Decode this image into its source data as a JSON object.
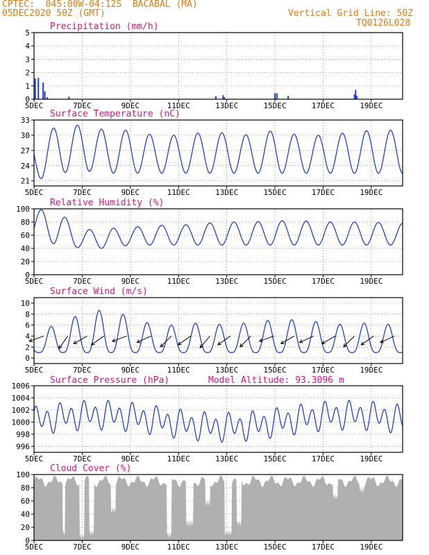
{
  "header": {
    "line1": "CPTEC:  045:00W-04:12S  BACABAL (MA)",
    "line2": "05DEC2020 50Z (GMT)",
    "right1": "Vertical Grid Line: 50Z",
    "right2": "TQ0126L028"
  },
  "x_axis": {
    "ticks": [
      "5DEC",
      "7DEC",
      "9DEC",
      "11DEC",
      "13DEC",
      "15DEC",
      "17DEC",
      "19DEC"
    ],
    "tick_days": [
      0,
      2,
      4,
      6,
      8,
      10,
      12,
      14
    ],
    "range_days": [
      0,
      15.3
    ],
    "hidden_label": "2020"
  },
  "colors": {
    "line": "#1f3fd6",
    "title": "#e0127a",
    "header": "#e07b13",
    "cloud": "#b0b0b0",
    "grid": "#777777"
  },
  "chart_data": [
    {
      "id": "precipitation",
      "type": "bar",
      "title": "Precipitation (mm/h)",
      "ylim": [
        0,
        5
      ],
      "yticks": [
        0,
        1,
        2,
        3,
        4,
        5
      ],
      "grid": "dotted",
      "x_unit": "days since 5DEC 00Z",
      "points": [
        [
          0.05,
          1.55
        ],
        [
          0.18,
          1.6
        ],
        [
          0.38,
          1.25
        ],
        [
          0.45,
          0.6
        ],
        [
          0.55,
          0.15
        ],
        [
          1.45,
          0.2
        ],
        [
          7.55,
          0.22
        ],
        [
          7.85,
          0.3
        ],
        [
          7.9,
          0.15
        ],
        [
          10.0,
          0.45
        ],
        [
          10.08,
          0.45
        ],
        [
          10.55,
          0.25
        ],
        [
          13.3,
          0.35
        ],
        [
          13.35,
          0.7
        ],
        [
          13.4,
          0.25
        ]
      ]
    },
    {
      "id": "temperature",
      "type": "line",
      "title": "Surface Temperature (nC)",
      "ylim": [
        20,
        33
      ],
      "yticks": [
        21,
        24,
        27,
        30,
        33
      ],
      "grid": "dotted",
      "x_unit": "days since 5DEC 00Z",
      "daily": {
        "min": [
          21,
          22.5,
          23,
          22.5,
          22.5,
          22.5,
          22.5,
          22.5,
          22.5,
          22.5,
          22.5,
          22.5,
          22.5,
          22.5,
          22.5,
          22.5
        ],
        "max": [
          29,
          32,
          32,
          31,
          31,
          30,
          30,
          30.5,
          30.5,
          30,
          31,
          30,
          30,
          30.5,
          31,
          31
        ]
      }
    },
    {
      "id": "humidity",
      "type": "line",
      "title": "Relative Humidity (%)",
      "ylim": [
        0,
        100
      ],
      "yticks": [
        0,
        20,
        40,
        60,
        80,
        100
      ],
      "grid": "dotted",
      "x_unit": "days since 5DEC 00Z",
      "daily": {
        "min": [
          55,
          45,
          40,
          40,
          45,
          45,
          45,
          45,
          45,
          45,
          45,
          45,
          45,
          45,
          45,
          45
        ],
        "max": [
          100,
          95,
          68,
          70,
          72,
          75,
          75,
          78,
          80,
          80,
          82,
          82,
          80,
          80,
          80,
          78
        ]
      }
    },
    {
      "id": "wind",
      "type": "line",
      "title": "Surface Wind (m/s)",
      "ylim": [
        -1,
        11
      ],
      "yticks": [
        0,
        2,
        4,
        6,
        8,
        10
      ],
      "grid": "dotted",
      "x_unit": "days since 5DEC 00Z",
      "daily": {
        "min": [
          1,
          1,
          1,
          1,
          1,
          1,
          1,
          1,
          1,
          1,
          1,
          1,
          1,
          1,
          1,
          1
        ],
        "max": [
          4,
          6.5,
          8,
          9,
          7.5,
          6,
          6,
          6.5,
          6,
          6.5,
          7,
          7,
          6.5,
          6,
          6.5,
          6
        ]
      },
      "vector_days": [
        0.4,
        1.4,
        2.2,
        2.9,
        3.85,
        4.85,
        5.7,
        6.5,
        7.3,
        8.15,
        9.0,
        9.95,
        10.8,
        11.6,
        12.5,
        13.3,
        14.1,
        14.95
      ],
      "vector_dirs_deg": [
        200,
        235,
        210,
        215,
        200,
        205,
        225,
        215,
        230,
        215,
        225,
        200,
        210,
        205,
        210,
        225,
        215,
        205
      ]
    },
    {
      "id": "pressure",
      "type": "line",
      "title": "Surface Pressure (hPa)",
      "annotation": "Model Altitude: 93.3096 m",
      "ylim": [
        995,
        1006
      ],
      "yticks": [
        996,
        998,
        1000,
        1002,
        1004,
        1006
      ],
      "grid": "dotted",
      "x_unit": "days since 5DEC 00Z",
      "diurnal": {
        "mean": 1000.2,
        "amp_semi": 1.8,
        "amp_diurnal": 0.9
      }
    },
    {
      "id": "cloud",
      "type": "area",
      "title": "Cloud Cover (%)",
      "ylim": [
        0,
        100
      ],
      "yticks": [
        0,
        20,
        40,
        60,
        80,
        100
      ],
      "grid": "dotted",
      "x_unit": "days since 5DEC 00Z",
      "level": 90,
      "gaps": [
        [
          1.2,
          1.3,
          5
        ],
        [
          1.9,
          2.1,
          0
        ],
        [
          2.3,
          2.5,
          5
        ],
        [
          3.2,
          3.4,
          40
        ],
        [
          5.5,
          5.7,
          2
        ],
        [
          6.3,
          6.6,
          20
        ],
        [
          7.1,
          7.3,
          50
        ],
        [
          7.9,
          8.2,
          5
        ],
        [
          8.4,
          8.6,
          20
        ],
        [
          12.4,
          12.6,
          60
        ],
        [
          13.5,
          13.7,
          70
        ]
      ]
    }
  ]
}
